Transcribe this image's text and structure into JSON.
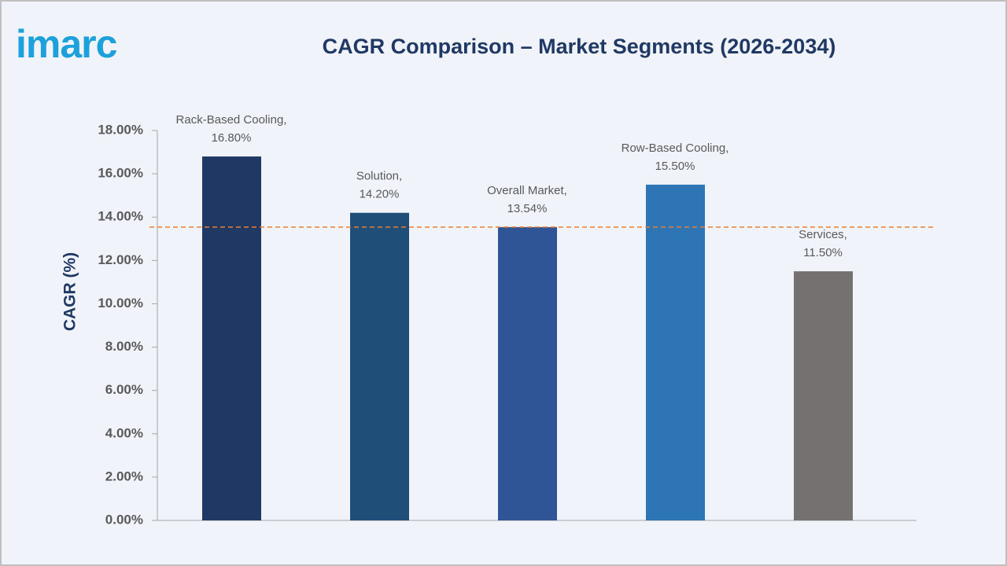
{
  "logo": "imarc",
  "chart_data": {
    "type": "bar",
    "title": "CAGR Comparison – Market Segments (2026-2034)",
    "ylabel": "CAGR (%)",
    "categories": [
      "Rack-Based Cooling,",
      "Solution,",
      "Overall Market,",
      "Row-Based Cooling,",
      "Services,"
    ],
    "values": [
      16.8,
      14.2,
      13.54,
      15.5,
      11.5
    ],
    "value_labels": [
      "16.80%",
      "14.20%",
      "13.54%",
      "15.50%",
      "11.50%"
    ],
    "colors": [
      "#203864",
      "#1f4e79",
      "#2f5597",
      "#2e75b6",
      "#767171"
    ],
    "reference_line_color": "#ed7d31",
    "ylim": [
      0,
      18
    ],
    "yticks": [
      {
        "value": 0,
        "label": "0.00%"
      },
      {
        "value": 2,
        "label": "2.00%"
      },
      {
        "value": 4,
        "label": "4.00%"
      },
      {
        "value": 6,
        "label": "6.00%"
      },
      {
        "value": 8,
        "label": "8.00%"
      },
      {
        "value": 10,
        "label": "10.00%"
      },
      {
        "value": 12,
        "label": "12.00%"
      },
      {
        "value": 14,
        "label": "14.00%"
      },
      {
        "value": 16,
        "label": "16.00%"
      },
      {
        "value": 18,
        "label": "18.00%"
      }
    ]
  }
}
